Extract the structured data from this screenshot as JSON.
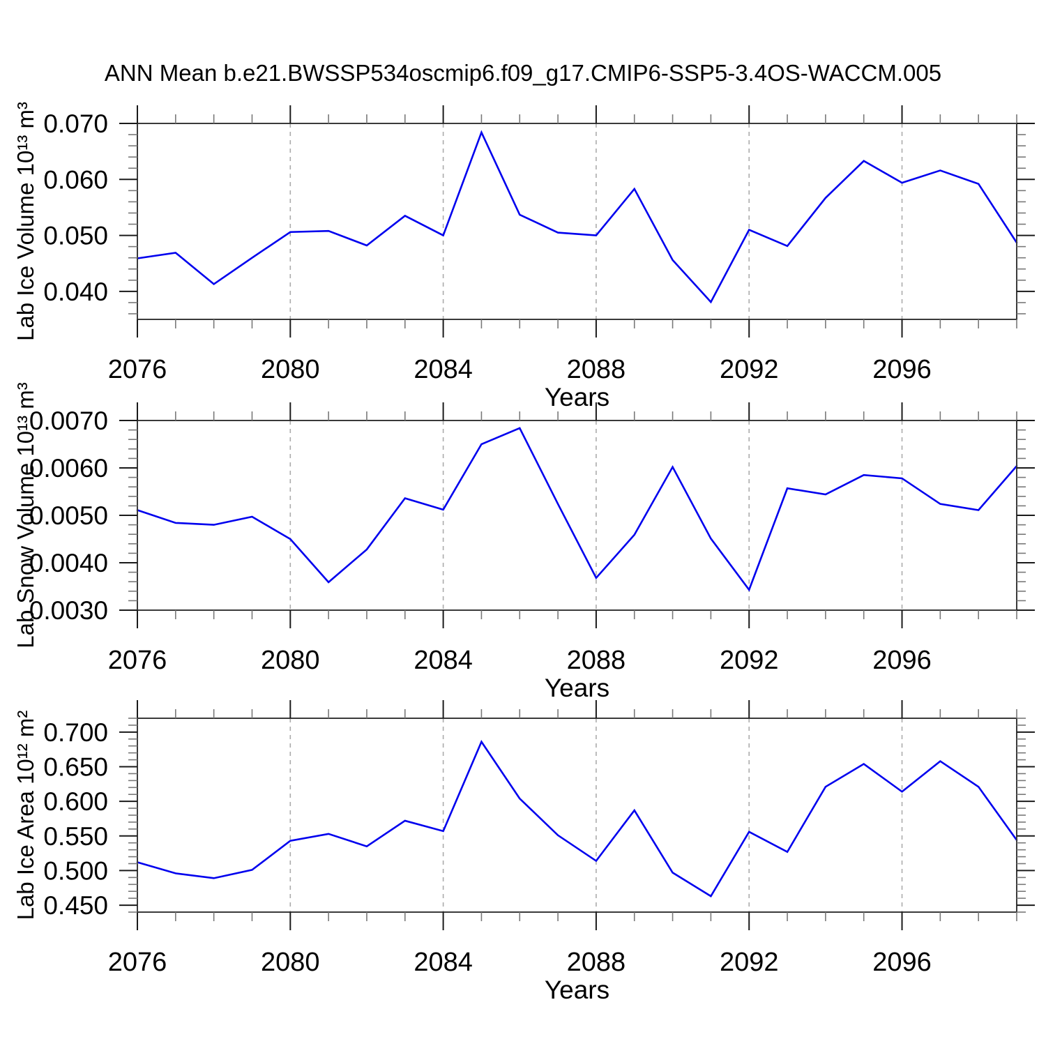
{
  "title": "ANN Mean b.e21.BWSSP534oscmip6.f09_g17.CMIP6-SSP5-3.4OS-WACCM.005",
  "colors": {
    "line": "#0000EE",
    "grid": "#ABABAB",
    "box": "#3A3A3A",
    "major_tick": "#1A1A1A",
    "minor_tick": "#787878",
    "text": "#000000"
  },
  "chart_data": [
    {
      "type": "line",
      "panel": 1,
      "ylabel": "Lab Ice Volume 10¹³ m³",
      "xlabel": "Years",
      "x": [
        2076,
        2077,
        2078,
        2079,
        2080,
        2081,
        2082,
        2083,
        2084,
        2085,
        2086,
        2087,
        2088,
        2089,
        2090,
        2091,
        2092,
        2093,
        2094,
        2095,
        2096,
        2097,
        2098,
        2099
      ],
      "values": [
        0.0459,
        0.0469,
        0.0413,
        0.046,
        0.0506,
        0.0508,
        0.0482,
        0.0535,
        0.05,
        0.0684,
        0.0537,
        0.0505,
        0.05,
        0.0583,
        0.0456,
        0.0381,
        0.051,
        0.0481,
        0.0567,
        0.0633,
        0.0594,
        0.0616,
        0.0592,
        0.0487
      ],
      "xlim": [
        2076,
        2099
      ],
      "ylim": [
        0.035,
        0.07
      ],
      "yticks_major": [
        0.04,
        0.05,
        0.06,
        0.07
      ],
      "ytick_labels": [
        "0.040",
        "0.050",
        "0.060",
        "0.070"
      ],
      "ytick_minor_step": 0.002,
      "xticks_major": [
        2076,
        2080,
        2084,
        2088,
        2092,
        2096
      ],
      "xtick_labels": [
        "2076",
        "2080",
        "2084",
        "2088",
        "2092",
        "2096"
      ],
      "xtick_minor_step": 1,
      "grid": "vertical dashed gridlines at major x ticks",
      "legend": "none"
    },
    {
      "type": "line",
      "panel": 2,
      "ylabel": "Lab Snow Volume 10¹³ m³",
      "xlabel": "Years",
      "x": [
        2076,
        2077,
        2078,
        2079,
        2080,
        2081,
        2082,
        2083,
        2084,
        2085,
        2086,
        2087,
        2088,
        2089,
        2090,
        2091,
        2092,
        2093,
        2094,
        2095,
        2096,
        2097,
        2098,
        2099
      ],
      "values": [
        0.00511,
        0.00484,
        0.0048,
        0.00497,
        0.0045,
        0.00359,
        0.00428,
        0.00536,
        0.00512,
        0.0065,
        0.00684,
        0.00524,
        0.00368,
        0.00459,
        0.00602,
        0.00451,
        0.00343,
        0.00557,
        0.00544,
        0.00585,
        0.00578,
        0.00524,
        0.00511,
        0.00604
      ],
      "xlim": [
        2076,
        2099
      ],
      "ylim": [
        0.003,
        0.007
      ],
      "yticks_major": [
        0.003,
        0.004,
        0.005,
        0.006,
        0.007
      ],
      "ytick_labels": [
        "0.0030",
        "0.0040",
        "0.0050",
        "0.0060",
        "0.0070"
      ],
      "ytick_minor_step": 0.0002,
      "xticks_major": [
        2076,
        2080,
        2084,
        2088,
        2092,
        2096
      ],
      "xtick_labels": [
        "2076",
        "2080",
        "2084",
        "2088",
        "2092",
        "2096"
      ],
      "xtick_minor_step": 1,
      "grid": "vertical dashed gridlines at major x ticks",
      "legend": "none"
    },
    {
      "type": "line",
      "panel": 3,
      "ylabel": "Lab Ice Area 10¹² m²",
      "xlabel": "Years",
      "x": [
        2076,
        2077,
        2078,
        2079,
        2080,
        2081,
        2082,
        2083,
        2084,
        2085,
        2086,
        2087,
        2088,
        2089,
        2090,
        2091,
        2092,
        2093,
        2094,
        2095,
        2096,
        2097,
        2098,
        2099
      ],
      "values": [
        0.512,
        0.496,
        0.489,
        0.501,
        0.543,
        0.553,
        0.535,
        0.572,
        0.557,
        0.686,
        0.604,
        0.551,
        0.514,
        0.587,
        0.497,
        0.463,
        0.556,
        0.527,
        0.621,
        0.654,
        0.614,
        0.658,
        0.621,
        0.544
      ],
      "xlim": [
        2076,
        2099
      ],
      "ylim": [
        0.44,
        0.72
      ],
      "yticks_major": [
        0.45,
        0.5,
        0.55,
        0.6,
        0.65,
        0.7
      ],
      "ytick_labels": [
        "0.450",
        "0.500",
        "0.550",
        "0.600",
        "0.650",
        "0.700"
      ],
      "ytick_minor_step": 0.01,
      "xticks_major": [
        2076,
        2080,
        2084,
        2088,
        2092,
        2096
      ],
      "xtick_labels": [
        "2076",
        "2080",
        "2084",
        "2088",
        "2092",
        "2096"
      ],
      "xtick_minor_step": 1,
      "grid": "vertical dashed gridlines at major x ticks",
      "legend": "none"
    }
  ]
}
